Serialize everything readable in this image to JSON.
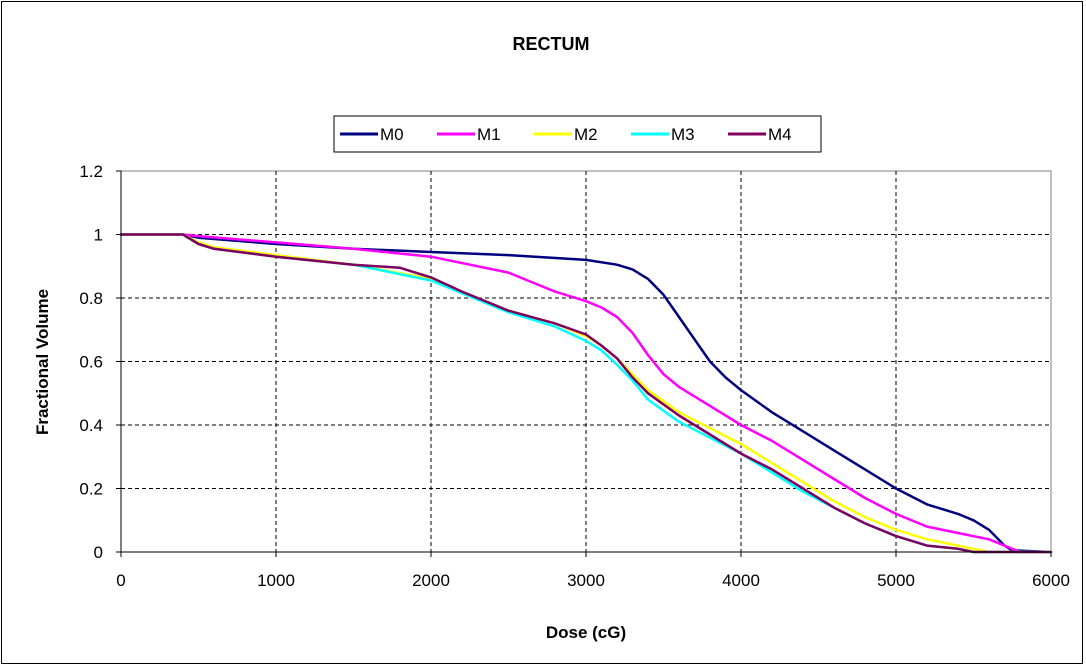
{
  "chart_data": {
    "type": "line",
    "title": "RECTUM",
    "xlabel": "Dose (cG)",
    "ylabel": "Fractional Volume",
    "xlim": [
      0,
      6000
    ],
    "ylim": [
      0,
      1.2
    ],
    "xticks": [
      0,
      1000,
      2000,
      3000,
      4000,
      5000,
      6000
    ],
    "yticks": [
      0,
      0.2,
      0.4,
      0.6,
      0.8,
      1,
      1.2
    ],
    "xtick_labels": [
      "0",
      "1000",
      "2000",
      "3000",
      "4000",
      "5000",
      "6000"
    ],
    "ytick_labels": [
      "0",
      "0.2",
      "0.4",
      "0.6",
      "0.8",
      "1",
      "1.2"
    ],
    "grid": true,
    "legend_position": "top-center",
    "series": [
      {
        "name": "M0",
        "color": "#000080",
        "x": [
          0,
          400,
          500,
          1000,
          1500,
          2000,
          2500,
          3000,
          3200,
          3300,
          3400,
          3500,
          3600,
          3700,
          3800,
          3900,
          4000,
          4200,
          4400,
          4600,
          4800,
          5000,
          5200,
          5400,
          5500,
          5600,
          5700,
          5750,
          6000
        ],
        "y": [
          1,
          1,
          0.99,
          0.97,
          0.955,
          0.945,
          0.935,
          0.92,
          0.905,
          0.89,
          0.86,
          0.81,
          0.74,
          0.67,
          0.6,
          0.55,
          0.51,
          0.44,
          0.38,
          0.32,
          0.26,
          0.2,
          0.15,
          0.12,
          0.1,
          0.07,
          0.02,
          0.005,
          0
        ]
      },
      {
        "name": "M1",
        "color": "#FF00FF",
        "x": [
          0,
          400,
          500,
          1000,
          1500,
          2000,
          2500,
          2800,
          3000,
          3100,
          3200,
          3300,
          3400,
          3500,
          3600,
          3800,
          4000,
          4200,
          4400,
          4600,
          4800,
          5000,
          5200,
          5400,
          5600,
          5700,
          5800,
          6000
        ],
        "y": [
          1,
          1,
          0.995,
          0.975,
          0.955,
          0.93,
          0.88,
          0.82,
          0.79,
          0.77,
          0.74,
          0.69,
          0.62,
          0.56,
          0.52,
          0.46,
          0.4,
          0.35,
          0.29,
          0.23,
          0.17,
          0.12,
          0.08,
          0.06,
          0.04,
          0.02,
          0,
          0
        ]
      },
      {
        "name": "M2",
        "color": "#FFFF00",
        "x": [
          0,
          400,
          500,
          600,
          1000,
          1500,
          2000,
          2200,
          2500,
          2800,
          3000,
          3100,
          3200,
          3300,
          3400,
          3600,
          3800,
          4000,
          4200,
          4400,
          4600,
          4800,
          5000,
          5200,
          5400,
          5500,
          5600,
          6000
        ],
        "y": [
          1,
          1,
          0.975,
          0.96,
          0.935,
          0.905,
          0.86,
          0.82,
          0.76,
          0.72,
          0.68,
          0.65,
          0.61,
          0.56,
          0.51,
          0.44,
          0.39,
          0.34,
          0.28,
          0.22,
          0.16,
          0.11,
          0.07,
          0.04,
          0.02,
          0.01,
          0,
          0
        ]
      },
      {
        "name": "M3",
        "color": "#00FFFF",
        "x": [
          0,
          400,
          500,
          600,
          1000,
          1500,
          2000,
          2200,
          2500,
          2800,
          3000,
          3100,
          3200,
          3300,
          3400,
          3600,
          3800,
          4000,
          4200,
          4400,
          4600,
          4800,
          5000,
          5200,
          5400,
          5500,
          6000
        ],
        "y": [
          1,
          1,
          0.97,
          0.955,
          0.93,
          0.905,
          0.855,
          0.815,
          0.755,
          0.71,
          0.665,
          0.635,
          0.59,
          0.54,
          0.48,
          0.41,
          0.36,
          0.31,
          0.25,
          0.19,
          0.14,
          0.09,
          0.05,
          0.02,
          0.01,
          0,
          0
        ]
      },
      {
        "name": "M4",
        "color": "#800060",
        "x": [
          0,
          400,
          500,
          600,
          1000,
          1500,
          1800,
          2000,
          2200,
          2500,
          2800,
          3000,
          3100,
          3200,
          3300,
          3400,
          3600,
          3800,
          4000,
          4200,
          4400,
          4600,
          4800,
          5000,
          5200,
          5400,
          5500,
          6000
        ],
        "y": [
          1,
          1,
          0.97,
          0.955,
          0.93,
          0.905,
          0.895,
          0.865,
          0.82,
          0.76,
          0.72,
          0.685,
          0.65,
          0.61,
          0.55,
          0.5,
          0.43,
          0.37,
          0.31,
          0.26,
          0.2,
          0.14,
          0.09,
          0.05,
          0.02,
          0.01,
          0,
          0
        ]
      }
    ]
  }
}
